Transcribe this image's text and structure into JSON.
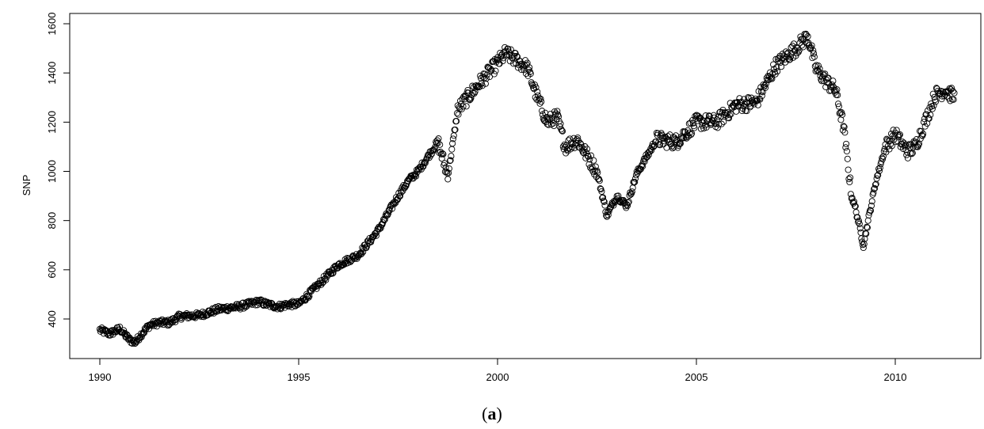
{
  "caption": {
    "paren_open": "(",
    "letter": "a",
    "paren_close": ")"
  },
  "chart_data": {
    "type": "scatter",
    "title": "",
    "xlabel": "",
    "ylabel": "SNP",
    "xlim": [
      1990,
      2011.5
    ],
    "ylim": [
      250,
      1620
    ],
    "xticks": [
      1990,
      1995,
      2000,
      2005,
      2010
    ],
    "xtick_labels": [
      "1990",
      "1995",
      "2000",
      "2005",
      "2010"
    ],
    "yticks": [
      400,
      600,
      800,
      1000,
      1200,
      1400,
      1600
    ],
    "ytick_labels": [
      "400",
      "600",
      "800",
      "1000",
      "1200",
      "1400",
      "1600"
    ],
    "grid": false,
    "marker": "open-circle",
    "x": [
      1990.0,
      1990.25,
      1990.5,
      1990.75,
      1990.9,
      1991.0,
      1991.25,
      1991.5,
      1991.75,
      1992.0,
      1992.5,
      1993.0,
      1993.5,
      1994.0,
      1994.2,
      1994.5,
      1994.75,
      1995.0,
      1995.5,
      1996.0,
      1996.5,
      1997.0,
      1997.5,
      1997.75,
      1998.0,
      1998.5,
      1998.75,
      1999.0,
      1999.5,
      2000.0,
      2000.2,
      2000.5,
      2000.75,
      2001.0,
      2001.25,
      2001.5,
      2001.7,
      2002.0,
      2002.5,
      2002.75,
      2003.0,
      2003.25,
      2003.5,
      2004.0,
      2004.5,
      2005.0,
      2005.5,
      2006.0,
      2006.5,
      2007.0,
      2007.5,
      2007.8,
      2008.0,
      2008.3,
      2008.5,
      2008.7,
      2008.9,
      2009.0,
      2009.2,
      2009.5,
      2009.75,
      2010.0,
      2010.3,
      2010.5,
      2010.75,
      2011.0,
      2011.25,
      2011.5
    ],
    "y": [
      355,
      340,
      360,
      315,
      305,
      330,
      375,
      385,
      385,
      410,
      415,
      440,
      450,
      470,
      460,
      450,
      460,
      460,
      540,
      620,
      660,
      760,
      900,
      960,
      1000,
      1120,
      980,
      1250,
      1350,
      1440,
      1480,
      1450,
      1420,
      1300,
      1200,
      1220,
      1100,
      1130,
      1000,
      820,
      900,
      860,
      990,
      1130,
      1120,
      1200,
      1200,
      1270,
      1280,
      1430,
      1500,
      1550,
      1420,
      1360,
      1330,
      1180,
      900,
      850,
      700,
      950,
      1100,
      1150,
      1080,
      1100,
      1200,
      1310,
      1330,
      1300
    ]
  }
}
